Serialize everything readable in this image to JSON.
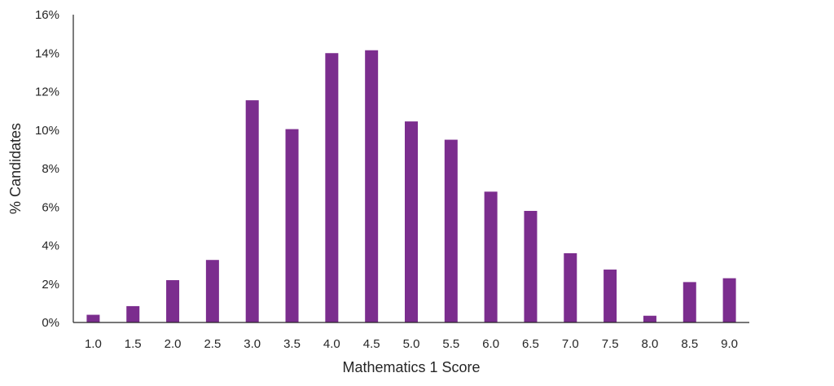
{
  "chart_data": {
    "type": "bar",
    "xlabel": "Mathematics 1 Score",
    "ylabel": "% Candidates",
    "categories": [
      "1.0",
      "1.5",
      "2.0",
      "2.5",
      "3.0",
      "3.5",
      "4.0",
      "4.5",
      "5.0",
      "5.5",
      "6.0",
      "6.5",
      "7.0",
      "7.5",
      "8.0",
      "8.5",
      "9.0"
    ],
    "values": [
      0.4,
      0.85,
      2.2,
      3.25,
      11.55,
      10.05,
      14.0,
      14.15,
      10.45,
      9.5,
      6.8,
      5.8,
      3.6,
      2.75,
      0.35,
      2.1,
      2.3
    ],
    "ylim": [
      0,
      16
    ],
    "yticks": [
      0,
      2,
      4,
      6,
      8,
      10,
      12,
      14,
      16
    ],
    "ytick_labels": [
      "0%",
      "2%",
      "4%",
      "6%",
      "8%",
      "10%",
      "12%",
      "14%",
      "16%"
    ],
    "bar_color": "#7b2d8e",
    "grid": false,
    "legend": "none"
  }
}
